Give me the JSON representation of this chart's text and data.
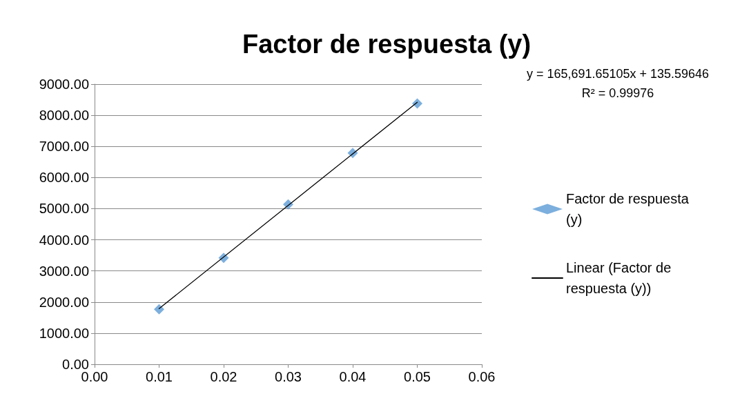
{
  "chart_data": {
    "type": "scatter",
    "title": "Factor de respuesta (y)",
    "x": [
      0.01,
      0.02,
      0.03,
      0.04,
      0.05
    ],
    "series": [
      {
        "name": "Factor de respuesta (y)",
        "type": "scatter",
        "color": "#5b9bd5",
        "marker": "diamond",
        "values": [
          1770,
          3420,
          5140,
          6790,
          8380
        ]
      },
      {
        "name": "Linear (Factor de respuesta (y))",
        "type": "line",
        "color": "#000000",
        "marker": "none",
        "line_style": "solid",
        "x": [
          0.01,
          0.05
        ],
        "values": [
          1790,
          8420
        ]
      }
    ],
    "xlim": [
      0,
      0.06
    ],
    "xticks": [
      {
        "value": 0,
        "label": "0.00"
      },
      {
        "value": 0.01,
        "label": "0.01"
      },
      {
        "value": 0.02,
        "label": "0.02"
      },
      {
        "value": 0.03,
        "label": "0.03"
      },
      {
        "value": 0.04,
        "label": "0.04"
      },
      {
        "value": 0.05,
        "label": "0.05"
      },
      {
        "value": 0.06,
        "label": "0.06"
      }
    ],
    "ylim": [
      0,
      9000
    ],
    "yticks": [
      {
        "value": 0,
        "label": "0.00"
      },
      {
        "value": 1000,
        "label": "1000.00"
      },
      {
        "value": 2000,
        "label": "2000.00"
      },
      {
        "value": 3000,
        "label": "3000.00"
      },
      {
        "value": 4000,
        "label": "4000.00"
      },
      {
        "value": 5000,
        "label": "5000.00"
      },
      {
        "value": 6000,
        "label": "6000.00"
      },
      {
        "value": 7000,
        "label": "7000.00"
      },
      {
        "value": 8000,
        "label": "8000.00"
      },
      {
        "value": 9000,
        "label": "9000.00"
      }
    ],
    "annotations": [
      "y = 165,691.65105x + 135.59646",
      "R² = 0.99976"
    ],
    "grid": "y",
    "legend": "right"
  }
}
